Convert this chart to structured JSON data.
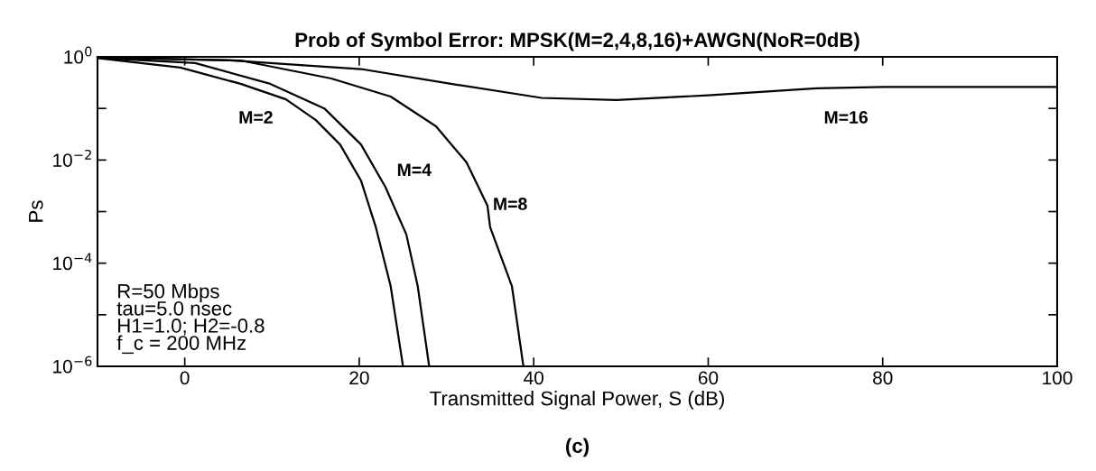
{
  "chart_data": {
    "type": "line",
    "title": "Prob of Symbol Error: MPSK(M=2,4,8,16)+AWGN(NoR=0dB)",
    "xlabel": "Transmitted Signal Power, S (dB)",
    "ylabel": "Ps",
    "log": "y",
    "grid": false,
    "marker": "none",
    "line_style": "solid",
    "xlim": [
      -10,
      100
    ],
    "xticks": [
      {
        "value": -10,
        "label": null
      },
      0,
      20,
      40,
      60,
      80,
      100
    ],
    "ylim": [
      1e-06,
      1
    ],
    "yticks": [
      {
        "value": 1e-06,
        "label": "10$^{−6}$"
      },
      {
        "value": 1e-05,
        "label": null
      },
      {
        "value": 0.0001,
        "label": "10$^{−4}$"
      },
      {
        "value": 0.001,
        "label": null
      },
      {
        "value": 0.01,
        "label": "10$^{−2}$"
      },
      {
        "value": 0.1,
        "label": null
      },
      {
        "value": 1,
        "label": "10$^{0}$"
      }
    ],
    "series": [
      {
        "name": "M=2",
        "color": "#000000",
        "x": [
          -10,
          -0.5,
          6.4,
          11.6,
          15,
          17.8,
          20.2,
          21.9,
          23.6,
          25.0
        ],
        "values": [
          0.95,
          0.62,
          0.3,
          0.15,
          0.06,
          0.02,
          0.004,
          0.0005,
          3.6e-05,
          1.05e-06
        ]
      },
      {
        "name": "M=4",
        "color": "#000000",
        "x": [
          -10,
          1.2,
          9.8,
          16,
          20.2,
          23,
          25.4,
          26.7,
          28.0
        ],
        "values": [
          0.96,
          0.76,
          0.3,
          0.1,
          0.02,
          0.003,
          0.00036,
          3.6e-05,
          1.05e-06
        ]
      },
      {
        "name": "M=8",
        "color": "#000000",
        "x": [
          -10,
          6.4,
          16.8,
          23.6,
          28.8,
          32.3,
          34.7,
          35,
          37.5,
          38.8
        ],
        "values": [
          0.97,
          0.85,
          0.38,
          0.17,
          0.045,
          0.009,
          0.0013,
          0.0005,
          3.6e-05,
          1.05e-06
        ]
      },
      {
        "name": "M=16",
        "color": "#000000",
        "x": [
          -10,
          5.7,
          9.8,
          20.2,
          30.5,
          40.9,
          49.5,
          60,
          72.4,
          80,
          100
        ],
        "values": [
          0.97,
          0.85,
          0.76,
          0.58,
          0.3,
          0.16,
          0.145,
          0.18,
          0.245,
          0.26,
          0.26
        ]
      }
    ],
    "annotations": [
      "R=50 Mbps\ntau=5.0 nsec\nH1=1.0; H2=-0.8\nf_c = 200 MHz",
      "(c)"
    ]
  }
}
